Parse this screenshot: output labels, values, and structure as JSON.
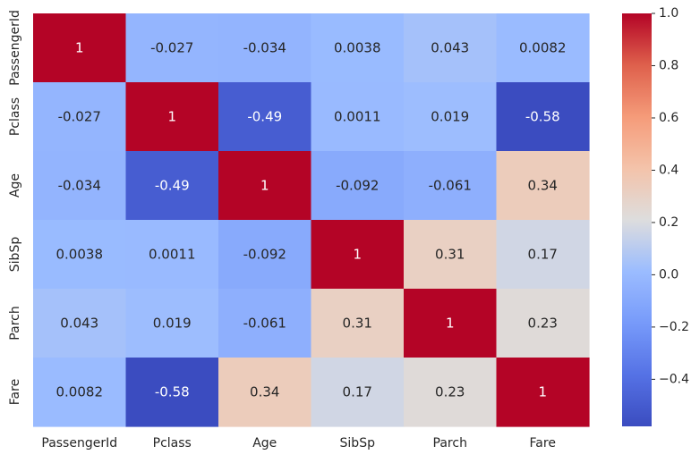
{
  "chart_data": {
    "type": "heatmap",
    "title": "",
    "xlabel": "",
    "ylabel": "",
    "x_categories": [
      "PassengerId",
      "Pclass",
      "Age",
      "SibSp",
      "Parch",
      "Fare"
    ],
    "y_categories": [
      "PassengerId",
      "Pclass",
      "Age",
      "SibSp",
      "Parch",
      "Fare"
    ],
    "values": [
      [
        1,
        -0.027,
        -0.034,
        0.0038,
        0.043,
        0.0082
      ],
      [
        -0.027,
        1,
        -0.49,
        0.0011,
        0.019,
        -0.58
      ],
      [
        -0.034,
        -0.49,
        1,
        -0.092,
        -0.061,
        0.34
      ],
      [
        0.0038,
        0.0011,
        -0.092,
        1,
        0.31,
        0.17
      ],
      [
        0.043,
        0.019,
        -0.061,
        0.31,
        1,
        0.23
      ],
      [
        0.0082,
        -0.58,
        0.34,
        0.17,
        0.23,
        1
      ]
    ],
    "annotations": [
      [
        "1",
        "-0.027",
        "-0.034",
        "0.0038",
        "0.043",
        "0.0082"
      ],
      [
        "-0.027",
        "1",
        "-0.49",
        "0.0011",
        "0.019",
        "-0.58"
      ],
      [
        "-0.034",
        "-0.49",
        "1",
        "-0.092",
        "-0.061",
        "0.34"
      ],
      [
        "0.0038",
        "0.0011",
        "-0.092",
        "1",
        "0.31",
        "0.17"
      ],
      [
        "0.043",
        "0.019",
        "-0.061",
        "0.31",
        "1",
        "0.23"
      ],
      [
        "0.0082",
        "-0.58",
        "0.34",
        "0.17",
        "0.23",
        "1"
      ]
    ],
    "colormap": "coolwarm",
    "color_range": [
      -0.58,
      1.0
    ],
    "colorbar": {
      "ticks": [
        1.0,
        0.8,
        0.6,
        0.4,
        0.2,
        0.0,
        -0.2,
        -0.4
      ],
      "tick_labels": [
        "1.0",
        "0.8",
        "0.6",
        "0.4",
        "0.2",
        "0.0",
        "−0.2",
        "−0.4"
      ],
      "placement": "right"
    },
    "grid": false
  }
}
